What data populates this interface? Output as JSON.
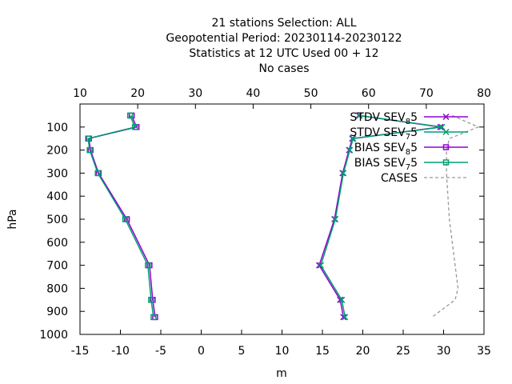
{
  "chart_data": {
    "type": "line",
    "title_lines": [
      "21 stations Selection: ALL",
      "Geopotential  Period: 20230114-20230122",
      "Statistics at 12 UTC  Used  00 + 12",
      "No cases"
    ],
    "xlabel": "m",
    "ylabel": "hPa",
    "xlim": [
      -15,
      35
    ],
    "x2lim": [
      10,
      80
    ],
    "ylim": [
      1000,
      0
    ],
    "x_ticks": [
      "-15",
      "-10",
      "-5",
      "0",
      "5",
      "10",
      "15",
      "20",
      "25",
      "30",
      "35"
    ],
    "x2_ticks": [
      "10",
      "20",
      "30",
      "40",
      "50",
      "60",
      "70",
      "80"
    ],
    "y_ticks": [
      "100",
      "200",
      "300",
      "400",
      "500",
      "600",
      "700",
      "800",
      "900",
      "1000"
    ],
    "grid": false,
    "legend_position": "top-right",
    "series": [
      {
        "name": "STDV SEV_8 5",
        "label_base": "STDV SEV",
        "label_sub": "8",
        "label_tail": "5",
        "color": "#9400d3",
        "marker": "x",
        "dashed": false,
        "points": [
          [
            19.5,
            50
          ],
          [
            29.6,
            100
          ],
          [
            18.7,
            150
          ],
          [
            18.3,
            200
          ],
          [
            17.5,
            300
          ],
          [
            16.5,
            500
          ],
          [
            14.6,
            700
          ],
          [
            17.2,
            850
          ],
          [
            17.6,
            925
          ]
        ]
      },
      {
        "name": "STDV SEV_7 5",
        "label_base": "STDV SEV",
        "label_sub": "7",
        "label_tail": "5",
        "color": "#009e73",
        "marker": "x",
        "dashed": false,
        "points": [
          [
            19.6,
            50
          ],
          [
            29.8,
            100
          ],
          [
            18.8,
            150
          ],
          [
            18.4,
            200
          ],
          [
            17.6,
            300
          ],
          [
            16.6,
            500
          ],
          [
            14.8,
            700
          ],
          [
            17.4,
            850
          ],
          [
            17.8,
            925
          ]
        ]
      },
      {
        "name": "BIAS SEV_8 5",
        "label_base": "BIAS SEV",
        "label_sub": "8",
        "label_tail": "5",
        "color": "#9400d3",
        "marker": "square",
        "dashed": false,
        "points": [
          [
            -8.6,
            50
          ],
          [
            -8.0,
            100
          ],
          [
            -13.9,
            150
          ],
          [
            -13.7,
            200
          ],
          [
            -12.7,
            300
          ],
          [
            -9.2,
            500
          ],
          [
            -6.4,
            700
          ],
          [
            -6.0,
            850
          ],
          [
            -5.7,
            925
          ]
        ]
      },
      {
        "name": "BIAS SEV_7 5",
        "label_base": "BIAS SEV",
        "label_sub": "7",
        "label_tail": "5",
        "color": "#009e73",
        "marker": "square",
        "dashed": false,
        "points": [
          [
            -8.8,
            50
          ],
          [
            -8.2,
            100
          ],
          [
            -14.0,
            150
          ],
          [
            -13.8,
            200
          ],
          [
            -12.8,
            300
          ],
          [
            -9.4,
            500
          ],
          [
            -6.6,
            700
          ],
          [
            -6.2,
            850
          ],
          [
            -5.9,
            925
          ]
        ]
      },
      {
        "name": "CASES",
        "label_base": "CASES",
        "label_sub": "",
        "label_tail": "",
        "color": "#999999",
        "marker": "none",
        "dashed": true,
        "axis": "x2",
        "points": [
          [
            74.5,
            50
          ],
          [
            79.0,
            100
          ],
          [
            74.0,
            150
          ],
          [
            73.5,
            200
          ],
          [
            73.5,
            300
          ],
          [
            74.0,
            500
          ],
          [
            75.0,
            700
          ],
          [
            75.5,
            800
          ],
          [
            75.0,
            850
          ],
          [
            71.0,
            925
          ]
        ]
      }
    ]
  }
}
